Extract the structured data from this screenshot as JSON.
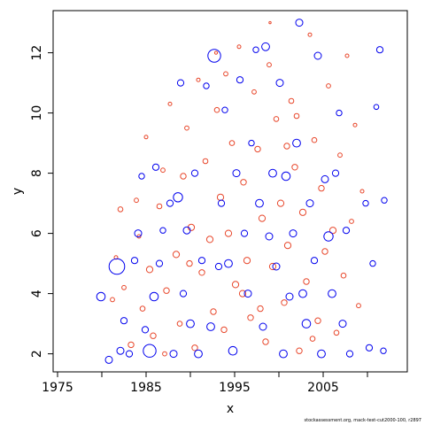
{
  "footnote": "stockassessment.org, mack-test-cut2000-100, r2897",
  "colors": {
    "negative": "#e8472b",
    "positive": "#0000ee",
    "axis": "#000000"
  },
  "chart_data": {
    "type": "scatter",
    "subtype": "bubble",
    "xlabel": "x",
    "ylabel": "y",
    "xlim": [
      1974.5,
      2014.5
    ],
    "ylim": [
      1.4,
      13.4
    ],
    "x_ticks": [
      1975,
      1985,
      1995,
      2005
    ],
    "x_minor_ticks": [
      1980,
      1990,
      2000,
      2010
    ],
    "y_ticks": [
      2,
      4,
      6,
      8,
      10,
      12
    ],
    "grid": false,
    "legend": "none",
    "marker": "open-circle",
    "size_encodes": "absolute residual magnitude",
    "color_encodes": "sign of residual",
    "series": [
      {
        "name": "negative",
        "color": "#e8472b",
        "points": [
          [
            1981.2,
            3.8,
            0.6
          ],
          [
            1981.6,
            5.2,
            0.5
          ],
          [
            1982.1,
            6.8,
            0.7
          ],
          [
            1982.5,
            4.2,
            0.6
          ],
          [
            1983.3,
            2.3,
            0.8
          ],
          [
            1983.9,
            7.1,
            0.6
          ],
          [
            1984.2,
            5.9,
            0.5
          ],
          [
            1984.6,
            3.5,
            0.7
          ],
          [
            1985.0,
            9.2,
            0.5
          ],
          [
            1985.4,
            4.8,
            0.9
          ],
          [
            1985.8,
            2.6,
            0.8
          ],
          [
            1986.5,
            6.9,
            0.7
          ],
          [
            1986.9,
            8.1,
            0.6
          ],
          [
            1987.3,
            4.1,
            0.8
          ],
          [
            1987.7,
            10.3,
            0.5
          ],
          [
            1988.4,
            5.3,
            0.9
          ],
          [
            1988.8,
            3.0,
            0.7
          ],
          [
            1989.2,
            7.9,
            0.8
          ],
          [
            1989.6,
            9.5,
            0.6
          ],
          [
            1990.1,
            6.2,
            0.9
          ],
          [
            1990.5,
            2.2,
            0.8
          ],
          [
            1990.9,
            11.1,
            0.5
          ],
          [
            1991.3,
            4.7,
            0.8
          ],
          [
            1991.7,
            8.4,
            0.7
          ],
          [
            1992.2,
            5.8,
            0.9
          ],
          [
            1992.6,
            3.4,
            0.8
          ],
          [
            1993.0,
            10.1,
            0.7
          ],
          [
            1993.4,
            7.2,
            0.9
          ],
          [
            1993.8,
            2.8,
            0.8
          ],
          [
            1994.3,
            6.0,
            0.9
          ],
          [
            1994.7,
            9.0,
            0.7
          ],
          [
            1995.1,
            4.3,
            0.9
          ],
          [
            1995.5,
            12.2,
            0.5
          ],
          [
            1996.0,
            7.7,
            0.8
          ],
          [
            1996.4,
            5.1,
            0.9
          ],
          [
            1996.8,
            3.2,
            0.8
          ],
          [
            1997.2,
            10.7,
            0.6
          ],
          [
            1997.6,
            8.8,
            0.8
          ],
          [
            1998.1,
            6.5,
            0.9
          ],
          [
            1998.5,
            2.4,
            0.8
          ],
          [
            1998.9,
            11.6,
            0.6
          ],
          [
            1999.3,
            4.9,
            0.9
          ],
          [
            1999.7,
            9.8,
            0.7
          ],
          [
            2000.2,
            7.0,
            0.9
          ],
          [
            2000.6,
            3.7,
            0.8
          ],
          [
            2001.0,
            5.6,
            0.9
          ],
          [
            2001.4,
            10.4,
            0.7
          ],
          [
            2001.8,
            8.2,
            0.8
          ],
          [
            2002.3,
            2.1,
            0.8
          ],
          [
            2002.7,
            6.7,
            0.9
          ],
          [
            2003.1,
            4.4,
            0.8
          ],
          [
            2003.5,
            12.6,
            0.5
          ],
          [
            2004.0,
            9.1,
            0.7
          ],
          [
            2004.4,
            3.1,
            0.8
          ],
          [
            2004.8,
            7.5,
            0.8
          ],
          [
            2005.2,
            5.4,
            0.8
          ],
          [
            2005.6,
            10.9,
            0.6
          ],
          [
            2006.1,
            6.1,
            0.9
          ],
          [
            2006.5,
            2.7,
            0.7
          ],
          [
            2006.9,
            8.6,
            0.6
          ],
          [
            2007.3,
            4.6,
            0.7
          ],
          [
            2007.7,
            11.9,
            0.5
          ],
          [
            2008.2,
            6.4,
            0.6
          ],
          [
            2008.6,
            9.6,
            0.5
          ],
          [
            2009.0,
            3.6,
            0.6
          ],
          [
            2009.4,
            7.4,
            0.5
          ],
          [
            1987.1,
            2.0,
            0.6
          ],
          [
            1992.9,
            12.0,
            0.4
          ],
          [
            1999.0,
            13.0,
            0.3
          ],
          [
            2003.8,
            2.5,
            0.7
          ],
          [
            1995.9,
            4.0,
            0.9
          ],
          [
            2000.9,
            8.9,
            0.8
          ],
          [
            1989.9,
            5.0,
            0.8
          ],
          [
            1994.0,
            11.3,
            0.6
          ],
          [
            1997.9,
            3.5,
            0.8
          ],
          [
            2002.0,
            9.9,
            0.7
          ]
        ]
      },
      {
        "name": "positive",
        "color": "#0000ee",
        "points": [
          [
            1979.9,
            3.9,
            1.2
          ],
          [
            1980.8,
            1.8,
            1.0
          ],
          [
            1981.7,
            4.9,
            2.2
          ],
          [
            1982.1,
            2.1,
            1.0
          ],
          [
            1982.5,
            3.1,
            0.9
          ],
          [
            1983.1,
            2.0,
            0.9
          ],
          [
            1983.7,
            5.1,
            0.9
          ],
          [
            1984.1,
            6.0,
            1.0
          ],
          [
            1984.5,
            7.9,
            0.8
          ],
          [
            1984.9,
            2.8,
            0.9
          ],
          [
            1985.4,
            2.1,
            1.8
          ],
          [
            1985.9,
            3.9,
            1.2
          ],
          [
            1986.1,
            8.2,
            0.9
          ],
          [
            1986.5,
            5.0,
            0.9
          ],
          [
            1986.9,
            6.1,
            0.8
          ],
          [
            1987.7,
            7.0,
            0.9
          ],
          [
            1988.1,
            2.0,
            1.0
          ],
          [
            1988.6,
            7.2,
            1.3
          ],
          [
            1988.9,
            11.0,
            0.9
          ],
          [
            1989.2,
            4.0,
            0.9
          ],
          [
            1989.6,
            6.1,
            1.0
          ],
          [
            1990.0,
            3.0,
            1.1
          ],
          [
            1990.5,
            8.0,
            0.9
          ],
          [
            1990.9,
            2.0,
            1.1
          ],
          [
            1991.3,
            5.1,
            0.9
          ],
          [
            1991.8,
            10.9,
            0.8
          ],
          [
            1992.3,
            2.9,
            1.1
          ],
          [
            1992.7,
            11.9,
            1.8
          ],
          [
            1993.2,
            4.9,
            0.9
          ],
          [
            1993.5,
            7.0,
            0.9
          ],
          [
            1993.9,
            10.1,
            0.8
          ],
          [
            1994.3,
            5.0,
            1.1
          ],
          [
            1994.8,
            2.1,
            1.2
          ],
          [
            1995.2,
            8.0,
            1.0
          ],
          [
            1995.6,
            11.1,
            0.9
          ],
          [
            1996.1,
            6.0,
            0.9
          ],
          [
            1996.5,
            4.0,
            1.0
          ],
          [
            1996.9,
            9.0,
            0.8
          ],
          [
            1997.4,
            12.1,
            0.8
          ],
          [
            1997.8,
            7.0,
            1.1
          ],
          [
            1998.2,
            2.9,
            1.0
          ],
          [
            1998.5,
            12.2,
            1.1
          ],
          [
            1998.9,
            5.9,
            1.0
          ],
          [
            1999.3,
            8.0,
            1.1
          ],
          [
            1999.7,
            4.9,
            1.0
          ],
          [
            2000.1,
            11.0,
            1.0
          ],
          [
            2000.5,
            2.0,
            1.1
          ],
          [
            2000.8,
            7.9,
            1.2
          ],
          [
            2001.2,
            3.9,
            1.0
          ],
          [
            2001.6,
            6.0,
            1.0
          ],
          [
            2002.0,
            9.0,
            1.1
          ],
          [
            2002.3,
            13.0,
            1.0
          ],
          [
            2002.7,
            4.0,
            1.1
          ],
          [
            2003.1,
            3.0,
            1.2
          ],
          [
            2003.5,
            7.0,
            1.0
          ],
          [
            2004.0,
            5.1,
            0.9
          ],
          [
            2004.4,
            11.9,
            1.0
          ],
          [
            2004.8,
            2.0,
            1.1
          ],
          [
            2005.2,
            7.8,
            1.0
          ],
          [
            2005.6,
            5.9,
            1.3
          ],
          [
            2006.0,
            4.0,
            1.1
          ],
          [
            2006.4,
            8.0,
            0.9
          ],
          [
            2006.8,
            10.0,
            0.8
          ],
          [
            2007.2,
            3.0,
            1.0
          ],
          [
            2007.6,
            6.1,
            0.9
          ],
          [
            2008.0,
            2.0,
            0.9
          ],
          [
            2009.8,
            7.0,
            0.8
          ],
          [
            2010.2,
            2.2,
            0.9
          ],
          [
            2010.6,
            5.0,
            0.8
          ],
          [
            2011.0,
            10.2,
            0.7
          ],
          [
            2011.4,
            12.1,
            0.9
          ],
          [
            2011.8,
            2.1,
            0.8
          ],
          [
            2011.9,
            7.1,
            0.8
          ]
        ]
      }
    ]
  }
}
